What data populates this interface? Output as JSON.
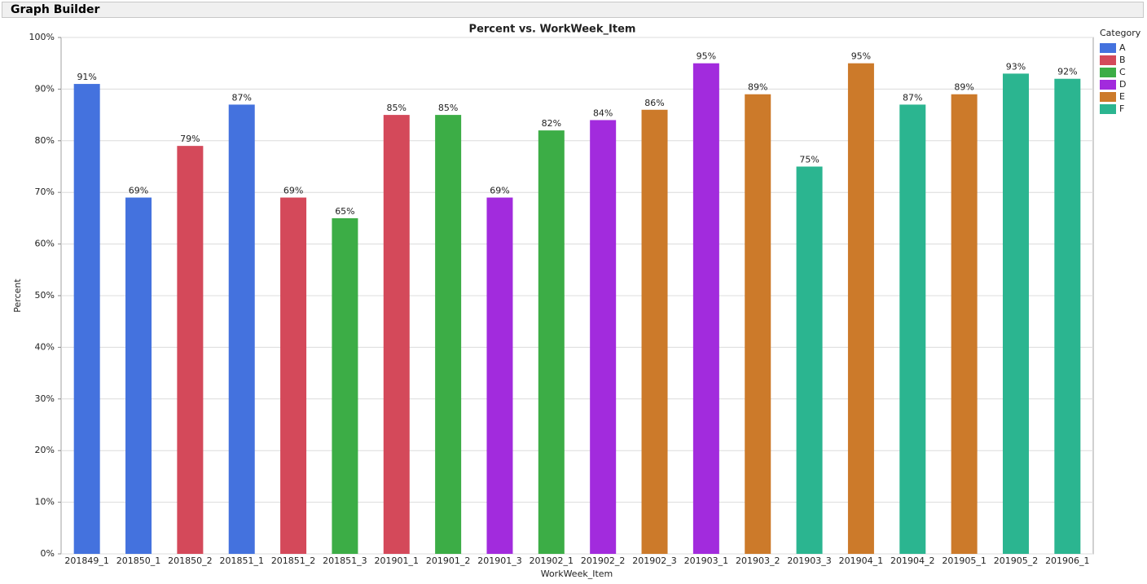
{
  "window_title": "Graph Builder",
  "chart_data": {
    "type": "bar",
    "title": "Percent vs. WorkWeek_Item",
    "x_label": "WorkWeek_Item",
    "y_label": "Percent",
    "legend_title": "Category",
    "legend_position": "right",
    "grid": true,
    "categories": [
      "201849_1",
      "201850_1",
      "201850_2",
      "201851_1",
      "201851_2",
      "201851_3",
      "201901_1",
      "201901_2",
      "201901_3",
      "201902_1",
      "201902_2",
      "201902_3",
      "201903_1",
      "201903_2",
      "201903_3",
      "201904_1",
      "201904_2",
      "201905_1",
      "201905_2",
      "201906_1"
    ],
    "series": [
      {
        "name": "A",
        "color": "#4472de",
        "values": [
          91,
          69,
          null,
          87,
          null,
          null,
          null,
          null,
          null,
          null,
          null,
          null,
          null,
          null,
          null,
          null,
          null,
          null,
          null,
          null
        ],
        "value_labels": [
          "91%",
          "69%",
          null,
          "87%",
          null,
          null,
          null,
          null,
          null,
          null,
          null,
          null,
          null,
          null,
          null,
          null,
          null,
          null,
          null,
          null
        ]
      },
      {
        "name": "B",
        "color": "#d4495a",
        "values": [
          null,
          null,
          79,
          null,
          69,
          null,
          85,
          null,
          null,
          null,
          null,
          null,
          null,
          null,
          null,
          null,
          null,
          null,
          null,
          null
        ],
        "value_labels": [
          null,
          null,
          "79%",
          null,
          "69%",
          null,
          "85%",
          null,
          null,
          null,
          null,
          null,
          null,
          null,
          null,
          null,
          null,
          null,
          null,
          null
        ]
      },
      {
        "name": "C",
        "color": "#3cad46",
        "values": [
          null,
          null,
          null,
          null,
          null,
          65,
          null,
          85,
          null,
          82,
          null,
          null,
          null,
          null,
          null,
          null,
          null,
          null,
          null,
          null
        ],
        "value_labels": [
          null,
          null,
          null,
          null,
          null,
          "65%",
          null,
          "85%",
          null,
          "82%",
          null,
          null,
          null,
          null,
          null,
          null,
          null,
          null,
          null,
          null
        ]
      },
      {
        "name": "D",
        "color": "#a22bdd",
        "values": [
          null,
          null,
          null,
          null,
          null,
          null,
          null,
          null,
          69,
          null,
          84,
          null,
          95,
          null,
          null,
          null,
          null,
          null,
          null,
          null
        ],
        "value_labels": [
          null,
          null,
          null,
          null,
          null,
          null,
          null,
          null,
          "69%",
          null,
          "84%",
          null,
          "95%",
          null,
          null,
          null,
          null,
          null,
          null,
          null
        ]
      },
      {
        "name": "E",
        "color": "#cc7a2a",
        "values": [
          null,
          null,
          null,
          null,
          null,
          null,
          null,
          null,
          null,
          null,
          null,
          86,
          null,
          89,
          null,
          95,
          null,
          89,
          null,
          null
        ],
        "value_labels": [
          null,
          null,
          null,
          null,
          null,
          null,
          null,
          null,
          null,
          null,
          null,
          "86%",
          null,
          "89%",
          null,
          "95%",
          null,
          "89%",
          null,
          null
        ]
      },
      {
        "name": "F",
        "color": "#2bb590",
        "values": [
          null,
          null,
          null,
          null,
          null,
          null,
          null,
          null,
          null,
          null,
          null,
          null,
          null,
          null,
          75,
          null,
          87,
          null,
          93,
          92
        ],
        "value_labels": [
          null,
          null,
          null,
          null,
          null,
          null,
          null,
          null,
          null,
          null,
          null,
          null,
          null,
          null,
          "75%",
          null,
          "87%",
          null,
          "93%",
          "92%"
        ]
      }
    ],
    "ylim": [
      0,
      100
    ],
    "yticks": [
      {
        "value": 0,
        "label": "0%"
      },
      {
        "value": 10,
        "label": "10%"
      },
      {
        "value": 20,
        "label": "20%"
      },
      {
        "value": 30,
        "label": "30%"
      },
      {
        "value": 40,
        "label": "40%"
      },
      {
        "value": 50,
        "label": "50%"
      },
      {
        "value": 60,
        "label": "60%"
      },
      {
        "value": 70,
        "label": "70%"
      },
      {
        "value": 80,
        "label": "80%"
      },
      {
        "value": 90,
        "label": "90%"
      },
      {
        "value": 100,
        "label": "100%"
      }
    ]
  }
}
